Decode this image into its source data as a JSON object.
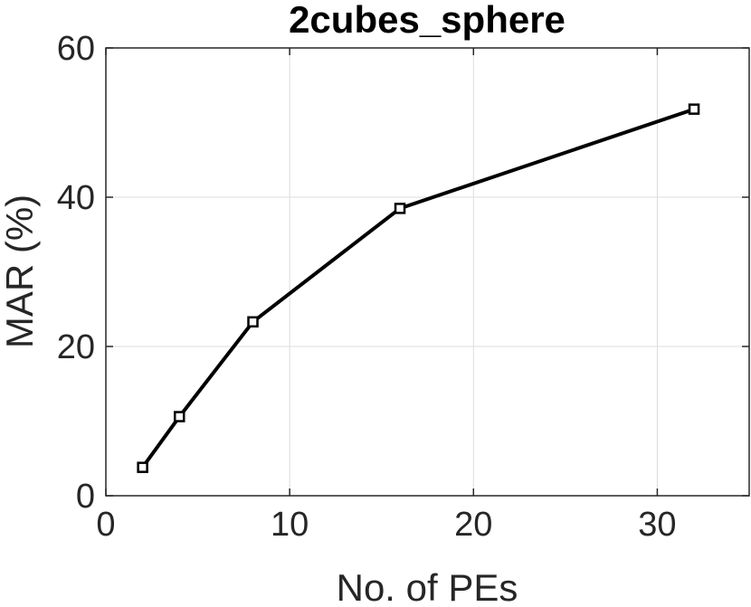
{
  "chart_data": {
    "type": "line",
    "title": "2cubes_sphere",
    "xlabel": "No. of PEs",
    "ylabel": "MAR (%)",
    "xlim": [
      0,
      35
    ],
    "ylim": [
      0,
      60
    ],
    "x_ticks": [
      0,
      10,
      20,
      30
    ],
    "y_ticks": [
      0,
      20,
      40,
      60
    ],
    "x_tick_labels": [
      "0",
      "10",
      "20",
      "30"
    ],
    "y_tick_labels": [
      "0",
      "20",
      "40",
      "60"
    ],
    "grid": true,
    "series": [
      {
        "x": [
          2,
          4,
          8,
          16,
          32
        ],
        "values": [
          3.8,
          10.6,
          23.3,
          38.5,
          51.8
        ],
        "color": "#000000",
        "marker": "square"
      }
    ]
  }
}
